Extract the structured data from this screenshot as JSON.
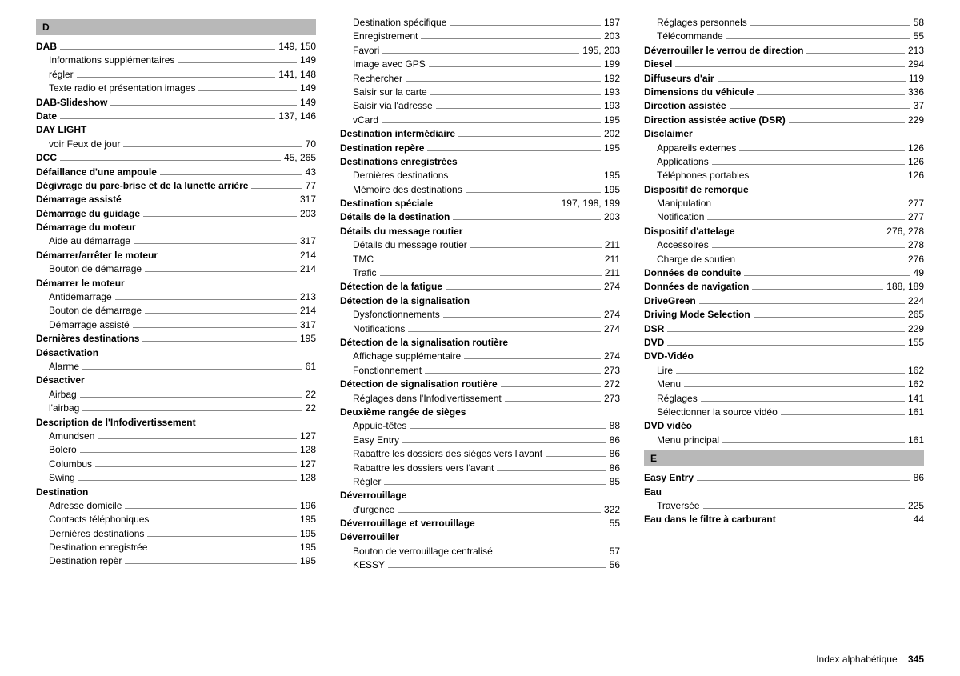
{
  "footer": {
    "label": "Index alphabétique",
    "page": "345"
  },
  "sections": [
    {
      "letter": "D"
    },
    {
      "letter": "E"
    }
  ],
  "col1": [
    {
      "type": "section",
      "text": "D"
    },
    {
      "type": "main",
      "label": "DAB",
      "page": "149, 150"
    },
    {
      "type": "sub",
      "label": "Informations supplémentaires",
      "page": "149"
    },
    {
      "type": "sub",
      "label": "régler",
      "page": "141, 148"
    },
    {
      "type": "sub",
      "label": "Texte radio et présentation images",
      "page": "149"
    },
    {
      "type": "main",
      "label": "DAB-Slideshow",
      "page": "149"
    },
    {
      "type": "main",
      "label": "Date",
      "page": "137, 146"
    },
    {
      "type": "header",
      "label": "DAY LIGHT"
    },
    {
      "type": "sub",
      "label": "voir Feux de jour",
      "page": "70"
    },
    {
      "type": "main",
      "label": "DCC",
      "page": "45, 265"
    },
    {
      "type": "main",
      "label": "Défaillance d'une ampoule",
      "page": "43"
    },
    {
      "type": "main",
      "label": "Dégivrage du pare-brise et de la lunette arrière",
      "page": "77"
    },
    {
      "type": "main",
      "label": "Démarrage assisté",
      "page": "317"
    },
    {
      "type": "main",
      "label": "Démarrage du guidage",
      "page": "203"
    },
    {
      "type": "header",
      "label": "Démarrage du moteur"
    },
    {
      "type": "sub",
      "label": "Aide au démarrage",
      "page": "317"
    },
    {
      "type": "main",
      "label": "Démarrer/arrêter le moteur",
      "page": "214"
    },
    {
      "type": "sub",
      "label": "Bouton de démarrage",
      "page": "214"
    },
    {
      "type": "header",
      "label": "Démarrer le moteur"
    },
    {
      "type": "sub",
      "label": "Antidémarrage",
      "page": "213"
    },
    {
      "type": "sub",
      "label": "Bouton de démarrage",
      "page": "214"
    },
    {
      "type": "sub",
      "label": "Démarrage assisté",
      "page": "317"
    },
    {
      "type": "main",
      "label": "Dernières destinations",
      "page": "195"
    },
    {
      "type": "header",
      "label": "Désactivation"
    },
    {
      "type": "sub",
      "label": "Alarme",
      "page": "61"
    },
    {
      "type": "header",
      "label": "Désactiver"
    },
    {
      "type": "sub",
      "label": "Airbag",
      "page": "22"
    },
    {
      "type": "sub",
      "label": "l'airbag",
      "page": "22"
    },
    {
      "type": "header",
      "label": "Description de l'Infodivertissement"
    },
    {
      "type": "sub",
      "label": "Amundsen",
      "page": "127"
    },
    {
      "type": "sub",
      "label": "Bolero",
      "page": "128"
    },
    {
      "type": "sub",
      "label": "Columbus",
      "page": "127"
    },
    {
      "type": "sub",
      "label": "Swing",
      "page": "128"
    },
    {
      "type": "header",
      "label": "Destination"
    },
    {
      "type": "sub",
      "label": "Adresse domicile",
      "page": "196"
    },
    {
      "type": "sub",
      "label": "Contacts téléphoniques",
      "page": "195"
    },
    {
      "type": "sub",
      "label": "Dernières destinations",
      "page": "195"
    },
    {
      "type": "sub",
      "label": "Destination enregistrée",
      "page": "195"
    },
    {
      "type": "sub",
      "label": "Destination repèr",
      "page": "195"
    }
  ],
  "col2": [
    {
      "type": "sub",
      "label": "Destination spécifique",
      "page": "197"
    },
    {
      "type": "sub",
      "label": "Enregistrement",
      "page": "203"
    },
    {
      "type": "sub",
      "label": "Favori",
      "page": "195, 203"
    },
    {
      "type": "sub",
      "label": "Image avec GPS",
      "page": "199"
    },
    {
      "type": "sub",
      "label": "Rechercher",
      "page": "192"
    },
    {
      "type": "sub",
      "label": "Saisir sur la carte",
      "page": "193"
    },
    {
      "type": "sub",
      "label": "Saisir via l'adresse",
      "page": "193"
    },
    {
      "type": "sub",
      "label": "vCard",
      "page": "195"
    },
    {
      "type": "main",
      "label": "Destination intermédiaire",
      "page": "202"
    },
    {
      "type": "main",
      "label": "Destination repère",
      "page": "195"
    },
    {
      "type": "header",
      "label": "Destinations enregistrées"
    },
    {
      "type": "sub",
      "label": "Dernières destinations",
      "page": "195"
    },
    {
      "type": "sub",
      "label": "Mémoire des destinations",
      "page": "195"
    },
    {
      "type": "main",
      "label": "Destination spéciale",
      "page": "197, 198, 199"
    },
    {
      "type": "main",
      "label": "Détails de la destination",
      "page": "203"
    },
    {
      "type": "header",
      "label": "Détails du message routier"
    },
    {
      "type": "sub",
      "label": "Détails du message routier",
      "page": "211"
    },
    {
      "type": "sub",
      "label": "TMC",
      "page": "211"
    },
    {
      "type": "sub",
      "label": "Trafic",
      "page": "211"
    },
    {
      "type": "main",
      "label": "Détection de la fatigue",
      "page": "274"
    },
    {
      "type": "header",
      "label": "Détection de la signalisation"
    },
    {
      "type": "sub",
      "label": "Dysfonctionnements",
      "page": "274"
    },
    {
      "type": "sub",
      "label": "Notifications",
      "page": "274"
    },
    {
      "type": "header",
      "label": "Détection de la signalisation routière"
    },
    {
      "type": "sub",
      "label": "Affichage supplémentaire",
      "page": "274"
    },
    {
      "type": "sub",
      "label": "Fonctionnement",
      "page": "273"
    },
    {
      "type": "main",
      "label": "Détection de signalisation routière",
      "page": "272"
    },
    {
      "type": "sub",
      "label": "Réglages dans l'Infodivertissement",
      "page": "273"
    },
    {
      "type": "header",
      "label": "Deuxième rangée de sièges"
    },
    {
      "type": "sub",
      "label": "Appuie-têtes",
      "page": "88"
    },
    {
      "type": "sub",
      "label": "Easy Entry",
      "page": "86"
    },
    {
      "type": "sub",
      "label": "Rabattre les dossiers des sièges vers l'avant",
      "page": "86"
    },
    {
      "type": "sub",
      "label": "Rabattre les dossiers vers l'avant",
      "page": "86"
    },
    {
      "type": "sub",
      "label": "Régler",
      "page": "85"
    },
    {
      "type": "header",
      "label": "Déverrouillage"
    },
    {
      "type": "sub",
      "label": "d'urgence",
      "page": "322"
    },
    {
      "type": "main",
      "label": "Déverrouillage et verrouillage",
      "page": "55"
    },
    {
      "type": "header",
      "label": "Déverrouiller"
    },
    {
      "type": "sub",
      "label": "Bouton de verrouillage centralisé",
      "page": "57"
    },
    {
      "type": "sub",
      "label": "KESSY",
      "page": "56"
    }
  ],
  "col3": [
    {
      "type": "sub",
      "label": "Réglages personnels",
      "page": "58"
    },
    {
      "type": "sub",
      "label": "Télécommande",
      "page": "55"
    },
    {
      "type": "main",
      "label": "Déverrouiller le verrou de direction",
      "page": "213"
    },
    {
      "type": "main",
      "label": "Diesel",
      "page": "294"
    },
    {
      "type": "main",
      "label": "Diffuseurs d'air",
      "page": "119"
    },
    {
      "type": "main",
      "label": "Dimensions du véhicule",
      "page": "336"
    },
    {
      "type": "main",
      "label": "Direction assistée",
      "page": "37"
    },
    {
      "type": "main",
      "label": "Direction assistée active (DSR)",
      "page": "229"
    },
    {
      "type": "header",
      "label": "Disclaimer"
    },
    {
      "type": "sub",
      "label": "Appareils externes",
      "page": "126"
    },
    {
      "type": "sub",
      "label": "Applications",
      "page": "126"
    },
    {
      "type": "sub",
      "label": "Téléphones portables",
      "page": "126"
    },
    {
      "type": "header",
      "label": "Dispositif de remorque"
    },
    {
      "type": "sub",
      "label": "Manipulation",
      "page": "277"
    },
    {
      "type": "sub",
      "label": "Notification",
      "page": "277"
    },
    {
      "type": "main",
      "label": "Dispositif d'attelage",
      "page": "276, 278"
    },
    {
      "type": "sub",
      "label": "Accessoires",
      "page": "278"
    },
    {
      "type": "sub",
      "label": "Charge de soutien",
      "page": "276"
    },
    {
      "type": "main",
      "label": "Données de conduite",
      "page": "49"
    },
    {
      "type": "main",
      "label": "Données de navigation",
      "page": "188, 189"
    },
    {
      "type": "main",
      "label": "DriveGreen",
      "page": "224"
    },
    {
      "type": "main",
      "label": "Driving Mode Selection",
      "page": "265"
    },
    {
      "type": "main",
      "label": "DSR",
      "page": "229"
    },
    {
      "type": "main",
      "label": "DVD",
      "page": "155"
    },
    {
      "type": "header",
      "label": "DVD-Vidéo"
    },
    {
      "type": "sub",
      "label": "Lire",
      "page": "162"
    },
    {
      "type": "sub",
      "label": "Menu",
      "page": "162"
    },
    {
      "type": "sub",
      "label": "Réglages",
      "page": "141"
    },
    {
      "type": "sub",
      "label": "Sélectionner la source vidéo",
      "page": "161"
    },
    {
      "type": "header",
      "label": "DVD vidéo"
    },
    {
      "type": "sub",
      "label": "Menu principal",
      "page": "161"
    },
    {
      "type": "section",
      "text": "E"
    },
    {
      "type": "main",
      "label": "Easy Entry",
      "page": "86"
    },
    {
      "type": "header",
      "label": "Eau"
    },
    {
      "type": "sub",
      "label": "Traversée",
      "page": "225"
    },
    {
      "type": "main",
      "label": "Eau dans le filtre à carburant",
      "page": "44"
    }
  ]
}
